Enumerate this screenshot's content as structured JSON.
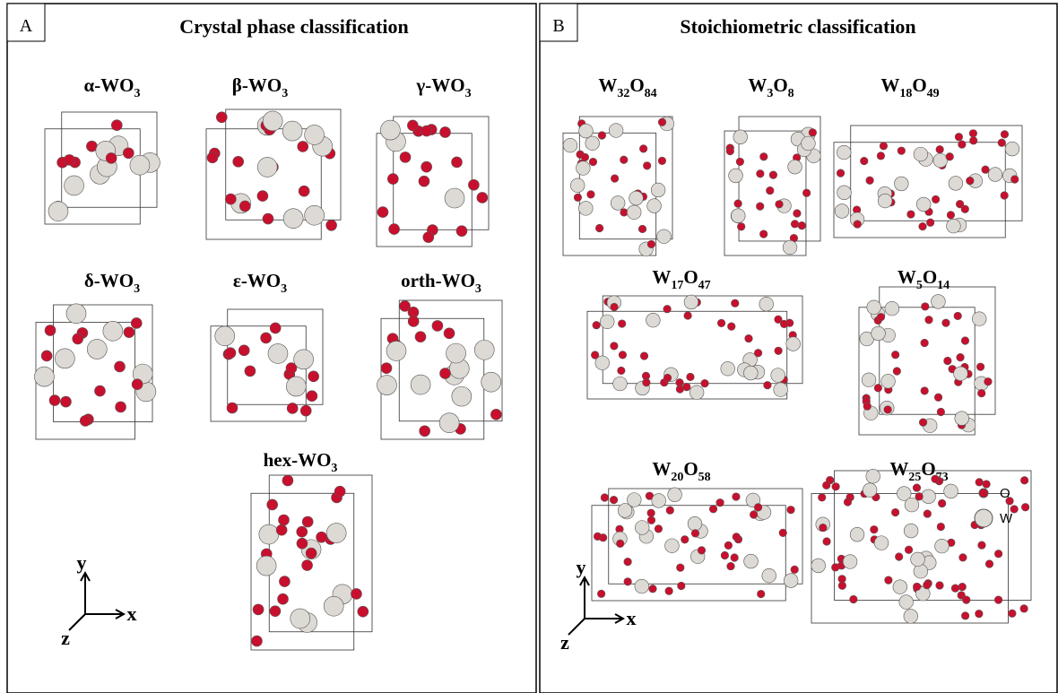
{
  "panels": [
    {
      "label": "A",
      "title": "Crystal phase classification",
      "structures": [
        {
          "label": [
            "α-WO",
            "3"
          ]
        },
        {
          "label": [
            "β-WO",
            "3"
          ]
        },
        {
          "label": [
            "γ-WO",
            "3"
          ]
        },
        {
          "label": [
            "δ-WO",
            "3"
          ]
        },
        {
          "label": [
            "ε-WO",
            "3"
          ]
        },
        {
          "label": [
            "orth-WO",
            "3"
          ]
        },
        {
          "label": [
            "hex-WO",
            "3"
          ]
        }
      ],
      "axes": {
        "y": "y",
        "x": "x",
        "z": "z"
      }
    },
    {
      "label": "B",
      "title": "Stoichiometric classification",
      "structures": [
        {
          "label": [
            "W",
            "32",
            "O",
            "84"
          ]
        },
        {
          "label": [
            "W",
            "3",
            "O",
            "8"
          ]
        },
        {
          "label": [
            "W",
            "18",
            "O",
            "49"
          ]
        },
        {
          "label": [
            "W",
            "17",
            "O",
            "47"
          ]
        },
        {
          "label": [
            "W",
            "5",
            "O",
            "14"
          ]
        },
        {
          "label": [
            "W",
            "20",
            "O",
            "58"
          ]
        },
        {
          "label": [
            "W",
            "25",
            "O",
            "73"
          ]
        }
      ],
      "axes": {
        "y": "y",
        "x": "x",
        "z": "z"
      },
      "legend": [
        {
          "label": "O"
        },
        {
          "label": "W"
        }
      ]
    }
  ]
}
